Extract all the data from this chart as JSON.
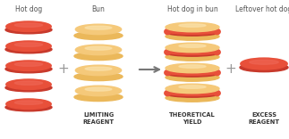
{
  "bg_color": "#ffffff",
  "hotdog_color": "#E8503A",
  "hotdog_dark": "#D44030",
  "hotdog_bottom": "#C8392B",
  "bun_top_color": "#F5C97A",
  "bun_top_light": "#FAE0A8",
  "bun_bottom_color": "#EBB85A",
  "title_color": "#555555",
  "bold_label_color": "#333333",
  "arrow_color": "#777777",
  "plus_color": "#999999",
  "labels": {
    "hotdog": "Hot dog",
    "bun": "Bun",
    "result": "Hot dog in bun",
    "leftover": "Leftover hot dog",
    "limiting": "LIMITING\nREAGENT",
    "theoretical": "THEORETICAL\nYIELD",
    "excess": "EXCESS\nREAGENT"
  }
}
